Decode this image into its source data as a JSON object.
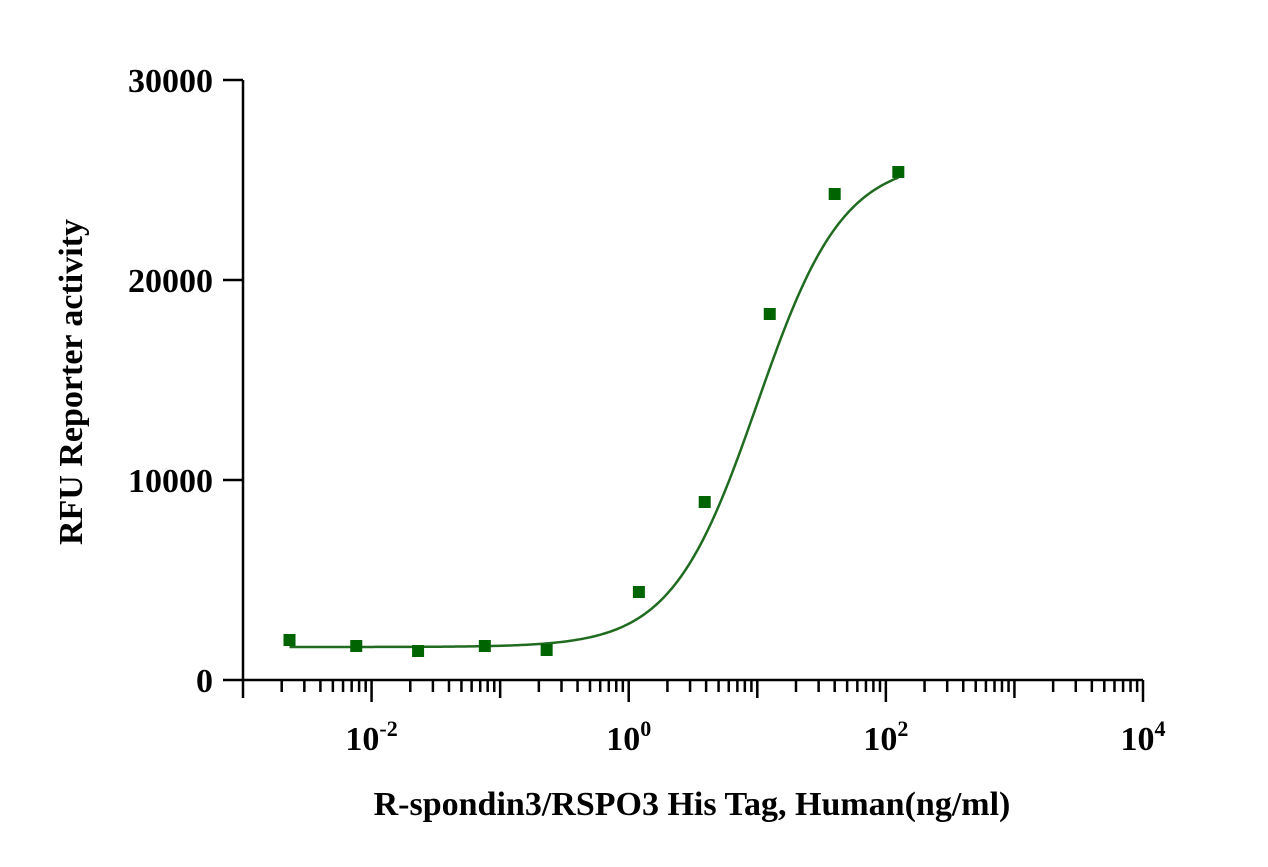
{
  "chart_data": {
    "type": "scatter",
    "xlabel": "R-spondin3/RSPO3 His Tag, Human(ng/ml)",
    "ylabel": "RFU Reporter activity",
    "x_scale": "log10",
    "xlim": [
      0.001,
      10000
    ],
    "ylim": [
      0,
      30000
    ],
    "y_ticks": [
      0,
      10000,
      20000,
      30000
    ],
    "y_tick_labels": [
      "0",
      "10000",
      "20000",
      "30000"
    ],
    "x_major_ticks": [
      0.01,
      1,
      100,
      10000
    ],
    "x_tick_labels": [
      {
        "base": "10",
        "exp": "-2"
      },
      {
        "base": "10",
        "exp": "0"
      },
      {
        "base": "10",
        "exp": "2"
      },
      {
        "base": "10",
        "exp": "4"
      }
    ],
    "grid": false,
    "legend": "none",
    "series": [
      {
        "marker": "square",
        "color": "#006400",
        "points": [
          {
            "x": 0.0023,
            "y": 2000
          },
          {
            "x": 0.0076,
            "y": 1700
          },
          {
            "x": 0.023,
            "y": 1450
          },
          {
            "x": 0.076,
            "y": 1700
          },
          {
            "x": 0.23,
            "y": 1500
          },
          {
            "x": 1.2,
            "y": 4400
          },
          {
            "x": 3.9,
            "y": 8900
          },
          {
            "x": 12.5,
            "y": 18300
          },
          {
            "x": 40,
            "y": 24300
          },
          {
            "x": 125,
            "y": 25400
          }
        ]
      },
      {
        "kind": "fit",
        "model": "4PL",
        "color": "#1f6b1f",
        "bottom": 1650,
        "top": 26000,
        "ec50": 10,
        "hill": 1.3,
        "x_range": [
          0.0023,
          125
        ]
      }
    ]
  }
}
